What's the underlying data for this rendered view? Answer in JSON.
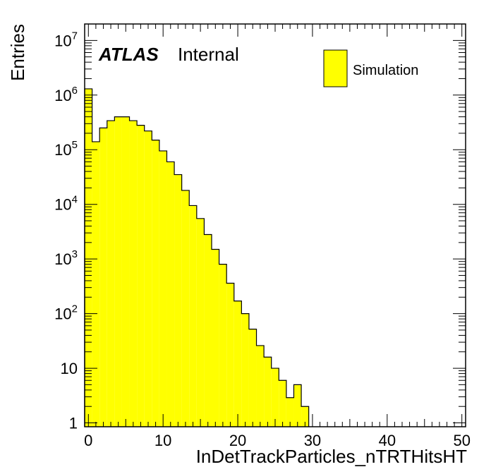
{
  "chart_data": {
    "type": "bar",
    "title": "",
    "xlabel": "InDetTrackParticles_nTRTHitsHT",
    "ylabel": "Entries",
    "xlim": [
      -0.5,
      50.5
    ],
    "ylim": [
      0.85,
      20000000
    ],
    "yscale": "log",
    "grid": false,
    "legend_placement": "top-right",
    "x_tick_labels": [
      "0",
      "10",
      "20",
      "30",
      "40",
      "50"
    ],
    "y_tick_labels": [
      {
        "base": "1",
        "exp": ""
      },
      {
        "base": "10",
        "exp": ""
      },
      {
        "base": "10",
        "exp": "2"
      },
      {
        "base": "10",
        "exp": "3"
      },
      {
        "base": "10",
        "exp": "4"
      },
      {
        "base": "10",
        "exp": "5"
      },
      {
        "base": "10",
        "exp": "6"
      },
      {
        "base": "10",
        "exp": "7"
      }
    ],
    "bin_width": 1,
    "x": [
      0,
      1,
      2,
      3,
      4,
      5,
      6,
      7,
      8,
      9,
      10,
      11,
      12,
      13,
      14,
      15,
      16,
      17,
      18,
      19,
      20,
      21,
      22,
      23,
      24,
      25,
      26,
      27,
      28,
      29
    ],
    "series": [
      {
        "name": "Simulation",
        "color": "#ffff00",
        "values": [
          1300000,
          140000,
          250000,
          340000,
          400000,
          400000,
          340000,
          280000,
          220000,
          150000,
          95000,
          60000,
          35000,
          18000,
          9500,
          5500,
          2800,
          1500,
          800,
          360,
          170,
          100,
          52,
          26,
          16,
          10,
          6,
          2.9,
          5,
          2
        ]
      }
    ],
    "annotations": {
      "experiment": "ATLAS",
      "status": "Internal"
    }
  }
}
